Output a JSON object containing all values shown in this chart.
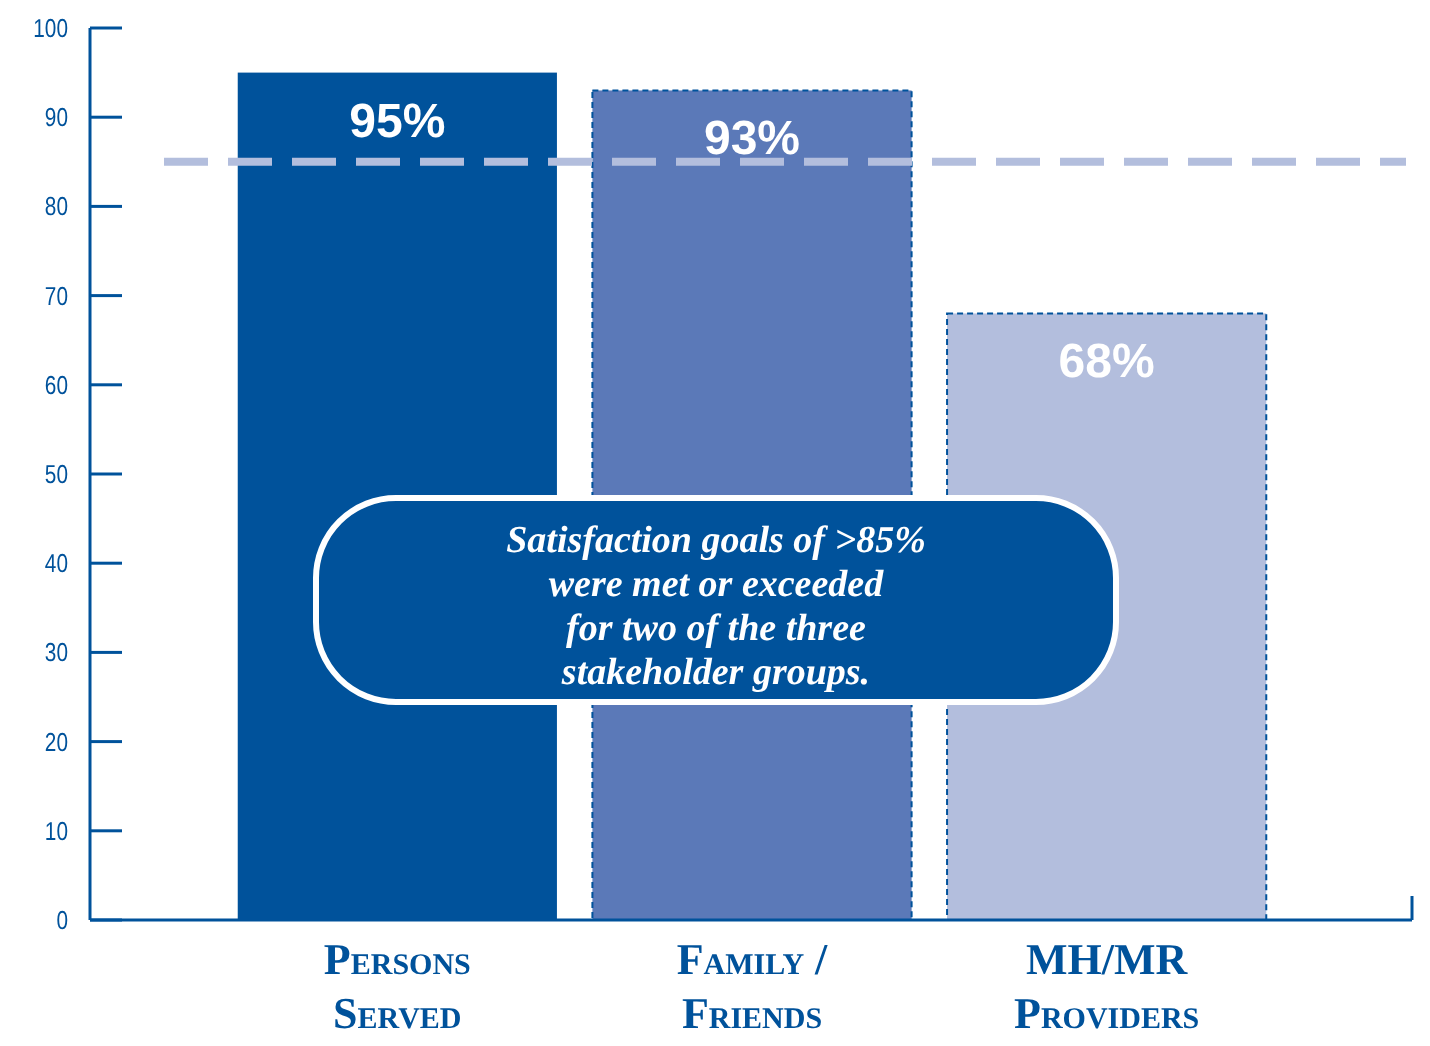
{
  "chart_data": {
    "type": "bar",
    "categories": [
      "Persons\nServed",
      "Family /\nFriends",
      "MH/MR\nProviders"
    ],
    "values": [
      95,
      93,
      68
    ],
    "colors": [
      "#00529b",
      "#5b79b8",
      "#b3bedd"
    ],
    "value_labels": [
      "95%",
      "93%",
      "68%"
    ],
    "ylim": [
      0,
      100
    ],
    "yticks": [
      0,
      10,
      20,
      30,
      40,
      50,
      60,
      70,
      80,
      90,
      100
    ],
    "grid": false,
    "ref_lines": [
      {
        "axis": "y",
        "value": 85,
        "color": "#b3bedd",
        "line_style": "dashed"
      }
    ],
    "annotations": [
      "Satisfaction goals of >85%\nwere met or exceeded\nfor two of the three\nstakeholder groups."
    ]
  }
}
